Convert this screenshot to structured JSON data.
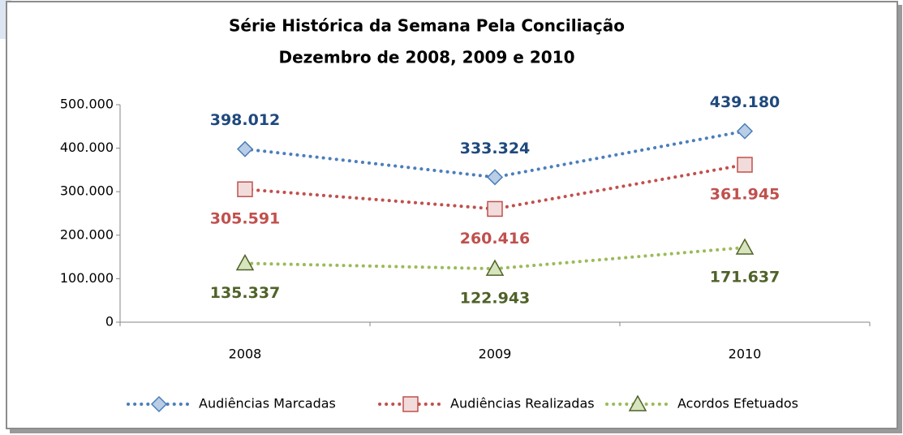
{
  "chart_data": {
    "type": "line",
    "title": "Série Histórica da Semana Pela Conciliação",
    "subtitle": "Dezembro de 2008, 2009 e 2010",
    "categories": [
      "2008",
      "2009",
      "2010"
    ],
    "series": [
      {
        "name": "Audiências Marcadas",
        "color": "#4a7ebb",
        "marker": "diamond",
        "marker_fill": "#b9cde5",
        "label_color": "#1f497d",
        "values": [
          398012,
          333324,
          439180
        ],
        "value_labels": [
          "398.012",
          "333.324",
          "439.180"
        ]
      },
      {
        "name": "Audiências Realizadas",
        "color": "#c0504d",
        "marker": "square",
        "marker_fill": "#f2dcdb",
        "label_color": "#c0504d",
        "values": [
          305591,
          260416,
          361945
        ],
        "value_labels": [
          "305.591",
          "260.416",
          "361.945"
        ]
      },
      {
        "name": "Acordos Efetuados",
        "color": "#9bbb59",
        "marker": "triangle",
        "marker_fill": "#d7e4bd",
        "label_color": "#4f6228",
        "values": [
          135337,
          122943,
          171637
        ],
        "value_labels": [
          "135.337",
          "122.943",
          "171.637"
        ]
      }
    ],
    "ylim": [
      0,
      500000
    ],
    "yticks": [
      0,
      {
        "value": 100000,
        "label": "100.000"
      },
      {
        "value": 200000,
        "label": "200.000"
      },
      {
        "value": 300000,
        "label": "300.000"
      },
      {
        "value": 400000,
        "label": "400.000"
      },
      {
        "value": 500000,
        "label": "500.000"
      }
    ],
    "grid": false,
    "legend": "bottom"
  }
}
